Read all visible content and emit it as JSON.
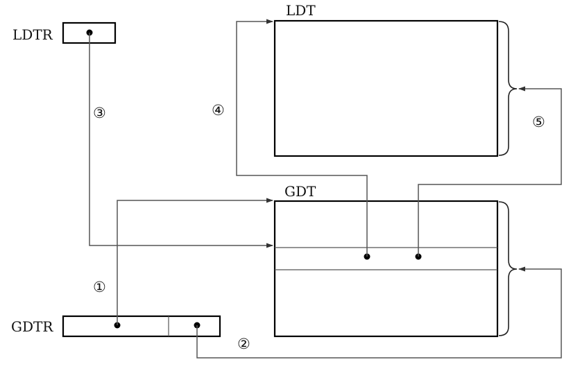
{
  "diagram": {
    "labels": {
      "ldtr": "LDTR",
      "gdtr": "GDTR",
      "ldt": "LDT",
      "gdt": "GDT"
    },
    "steps": [
      "①",
      "②",
      "③",
      "④",
      "⑤"
    ]
  }
}
